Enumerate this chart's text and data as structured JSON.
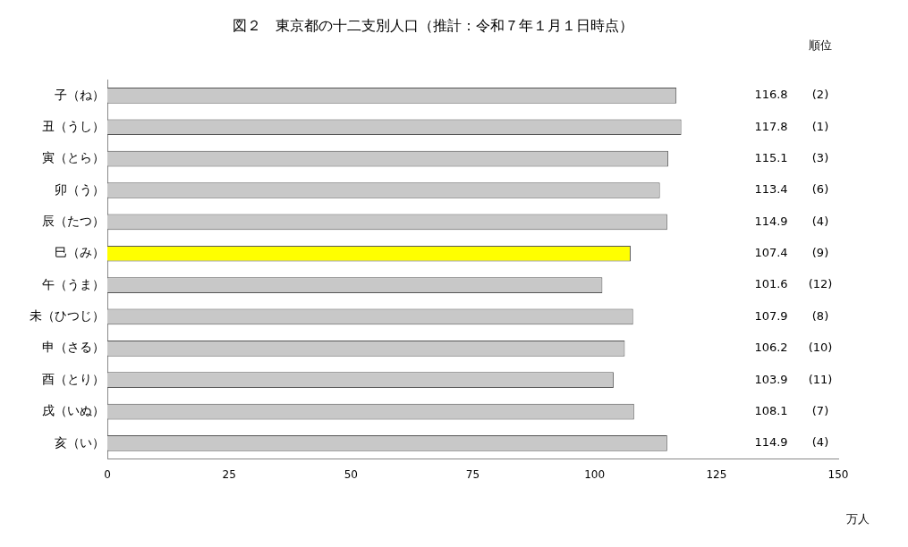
{
  "chart_data": {
    "type": "bar",
    "orientation": "horizontal",
    "title": "図２　東京都の十二支別人口（推計：令和７年１月１日時点）",
    "xlabel": "万人",
    "categories": [
      "子（ね）",
      "丑（うし）",
      "寅（とら）",
      "卯（う）",
      "辰（たつ）",
      "巳（み）",
      "午（うま）",
      "未（ひつじ）",
      "申（さる）",
      "酉（とり）",
      "戌（いぬ）",
      "亥（い）"
    ],
    "values": [
      116.8,
      117.8,
      115.1,
      113.4,
      114.9,
      107.4,
      101.6,
      107.9,
      106.2,
      103.9,
      108.1,
      114.9
    ],
    "colors": [
      "#c8c8c8",
      "#c8c8c8",
      "#c8c8c8",
      "#c8c8c8",
      "#c8c8c8",
      "#ffff00",
      "#c8c8c8",
      "#c8c8c8",
      "#c8c8c8",
      "#c8c8c8",
      "#c8c8c8",
      "#c8c8c8"
    ],
    "xlim": [
      0,
      150
    ],
    "xticks": [
      0,
      25,
      50,
      75,
      100,
      125,
      150
    ],
    "grid": false,
    "legend": false,
    "data_labels": true,
    "annotations": [
      "順位",
      "(2)",
      "(1)",
      "(3)",
      "(6)",
      "(4)",
      "(9)",
      "(12)",
      "(8)",
      "(10)",
      "(11)",
      "(7)",
      "(4)"
    ]
  }
}
